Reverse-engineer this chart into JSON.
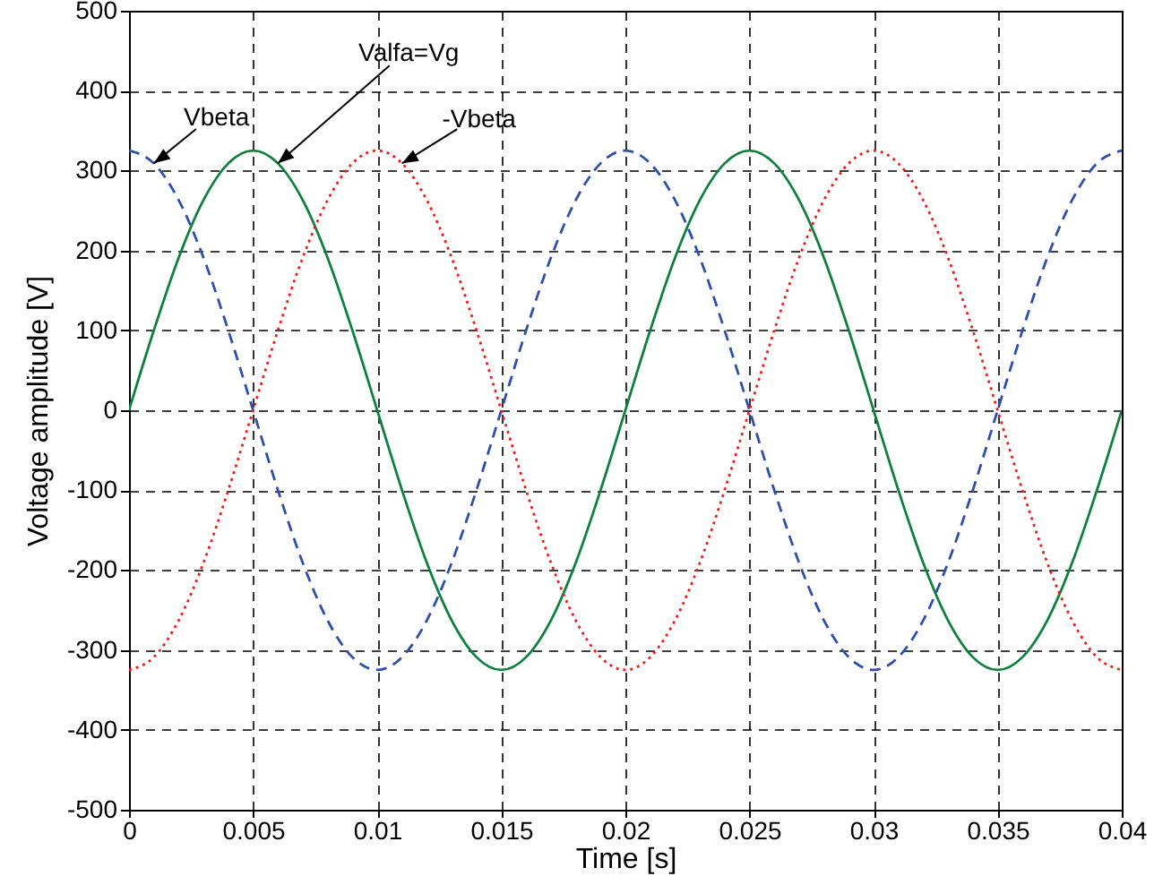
{
  "chart_data": {
    "type": "line",
    "xlabel": "Time [s]",
    "ylabel": "Voltage amplitude [V]",
    "x": [
      0,
      0.001,
      0.002,
      0.003,
      0.004,
      0.005,
      0.006,
      0.007,
      0.008,
      0.009,
      0.01,
      0.011,
      0.012,
      0.013,
      0.014,
      0.015,
      0.016,
      0.017,
      0.018,
      0.019,
      0.02,
      0.021,
      0.022,
      0.023,
      0.024,
      0.025,
      0.026,
      0.027,
      0.028,
      0.029,
      0.03,
      0.031,
      0.032,
      0.033,
      0.034,
      0.035,
      0.036,
      0.037,
      0.038,
      0.039,
      0.04
    ],
    "series": [
      {
        "color": "#108040",
        "line_style": "solid",
        "values": [
          0,
          100,
          191,
          263,
          309,
          325,
          309,
          263,
          191,
          100,
          0,
          -100,
          -191,
          -263,
          -309,
          -325,
          -309,
          -263,
          -191,
          -100,
          0,
          100,
          191,
          263,
          309,
          325,
          309,
          263,
          191,
          100,
          0,
          -100,
          -191,
          -263,
          -309,
          -325,
          -309,
          -263,
          -191,
          -100,
          0
        ]
      },
      {
        "color": "#3050a8",
        "line_style": "dashed",
        "values": [
          325,
          309,
          263,
          191,
          100,
          0,
          -100,
          -191,
          -263,
          -309,
          -325,
          -309,
          -263,
          -191,
          -100,
          0,
          100,
          191,
          263,
          309,
          325,
          309,
          263,
          191,
          100,
          0,
          -100,
          -191,
          -263,
          -309,
          -325,
          -309,
          -263,
          -191,
          -100,
          0,
          100,
          191,
          263,
          309,
          325
        ]
      },
      {
        "color": "#e82020",
        "line_style": "dotted",
        "values": [
          -325,
          -309,
          -263,
          -191,
          -100,
          0,
          100,
          191,
          263,
          309,
          325,
          309,
          263,
          191,
          100,
          0,
          -100,
          -191,
          -263,
          -309,
          -325,
          -309,
          -263,
          -191,
          -100,
          0,
          100,
          191,
          263,
          309,
          325,
          309,
          263,
          191,
          100,
          0,
          -100,
          -191,
          -263,
          -309,
          -325
        ]
      }
    ],
    "xlim": [
      0,
      0.04
    ],
    "xticks": [
      0,
      0.005,
      0.01,
      0.015,
      0.02,
      0.025,
      0.03,
      0.035,
      0.04
    ],
    "ylim": [
      -500,
      500
    ],
    "yticks": [
      -500,
      -400,
      -300,
      -200,
      -100,
      0,
      100,
      200,
      300,
      400,
      500
    ],
    "grid": true,
    "marker": "none",
    "annotations": [
      {
        "text": "Vbeta",
        "x": 0.001,
        "y": 309
      },
      {
        "text": "Valfa=Vg",
        "x": 0.006,
        "y": 309
      },
      {
        "text": "-Vbeta",
        "x": 0.011,
        "y": 309
      }
    ]
  }
}
